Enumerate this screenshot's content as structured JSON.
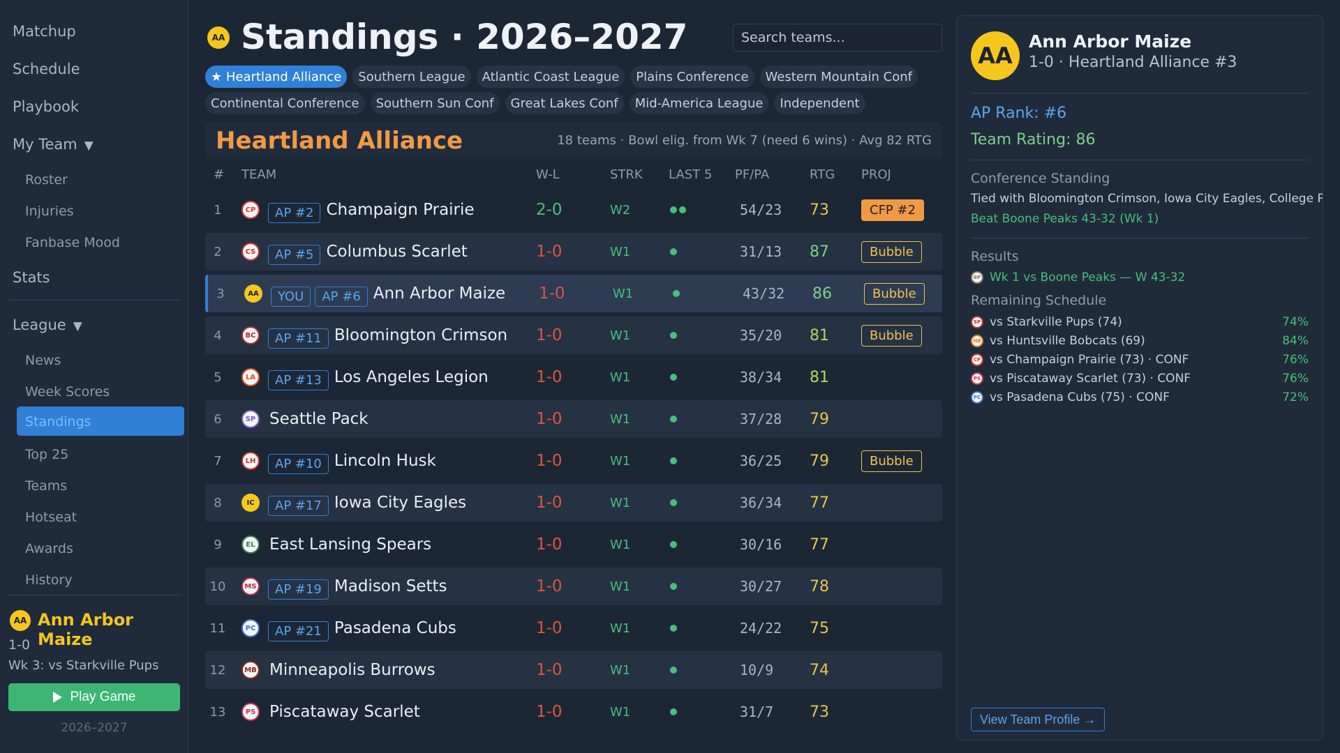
{
  "sidebar": {
    "nav": [
      "Matchup",
      "Schedule",
      "Playbook",
      "My Team"
    ],
    "my_team_sub": [
      "Roster",
      "Injuries",
      "Fanbase Mood"
    ],
    "stats": "Stats",
    "league": "League",
    "league_sub": [
      "News",
      "Week Scores",
      "Standings",
      "Top 25",
      "Teams",
      "Hotseat",
      "Awards",
      "History"
    ],
    "active_item": "Standings",
    "user_team": {
      "logo": "AA",
      "name": "Ann Arbor Maize",
      "record": "1-0",
      "next_game": "Wk 3: vs Starkville Pups"
    },
    "play_button": "Play Game",
    "season": "2026–2027"
  },
  "header": {
    "logo": "AA",
    "title": "Standings · 2026–2027",
    "search_placeholder": "Search teams..."
  },
  "conferences_row1": [
    "★ Heartland Alliance",
    "Southern League",
    "Atlantic Coast League",
    "Plains Conference",
    "Western Mountain Conf"
  ],
  "conferences_row2": [
    "Continental Conference",
    "Southern Sun Conf",
    "Great Lakes Conf",
    "Mid-America League",
    "Independent"
  ],
  "conference": {
    "name": "Heartland Alliance",
    "meta": "18 teams · Bowl elig. from Wk 7 (need 6 wins) · Avg 82 RTG"
  },
  "columns": [
    "#",
    "TEAM",
    "W-L",
    "STRK",
    "LAST 5",
    "PF/PA",
    "RTG",
    "PROJ"
  ],
  "standings": [
    {
      "rank": "1",
      "logo": "CP",
      "logo_color": "#d63b2f",
      "badges": [
        "AP #2"
      ],
      "team": "Champaign Prairie",
      "wl": "2-0",
      "wl_color": "#46c07a",
      "strk": "W2",
      "last5": 2,
      "pfpa": "54/23",
      "rtg": "73",
      "rtg_color": "#e8c44c",
      "proj": "CFP #2",
      "proj_type": "cfp"
    },
    {
      "rank": "2",
      "logo": "CS",
      "logo_color": "#c4312b",
      "badges": [
        "AP #5"
      ],
      "team": "Columbus Scarlet",
      "wl": "1-0",
      "wl_color": "#e0533f",
      "strk": "W1",
      "last5": 1,
      "pfpa": "31/13",
      "rtg": "87",
      "rtg_color": "#7cd08e",
      "proj": "Bubble",
      "proj_type": "bubble"
    },
    {
      "rank": "3",
      "logo": "AA",
      "logo_color": "#f5c61c",
      "badges": [
        "YOU",
        "AP #6"
      ],
      "team": "Ann Arbor Maize",
      "wl": "1-0",
      "wl_color": "#e0533f",
      "strk": "W1",
      "last5": 1,
      "pfpa": "43/32",
      "rtg": "86",
      "rtg_color": "#7cd08e",
      "proj": "Bubble",
      "proj_type": "bubble",
      "you": true
    },
    {
      "rank": "4",
      "logo": "BC",
      "logo_color": "#b32a2a",
      "badges": [
        "AP #11"
      ],
      "team": "Bloomington Crimson",
      "wl": "1-0",
      "wl_color": "#e0533f",
      "strk": "W1",
      "last5": 1,
      "pfpa": "35/20",
      "rtg": "81",
      "rtg_color": "#b8d35a",
      "proj": "Bubble",
      "proj_type": "bubble"
    },
    {
      "rank": "5",
      "logo": "LA",
      "logo_color": "#d9531e",
      "badges": [
        "AP #13"
      ],
      "team": "Los Angeles Legion",
      "wl": "1-0",
      "wl_color": "#e0533f",
      "strk": "W1",
      "last5": 1,
      "pfpa": "38/34",
      "rtg": "81",
      "rtg_color": "#b8d35a",
      "proj": "",
      "proj_type": ""
    },
    {
      "rank": "6",
      "logo": "SP",
      "logo_color": "#7b5cc4",
      "badges": [],
      "team": "Seattle Pack",
      "wl": "1-0",
      "wl_color": "#e0533f",
      "strk": "W1",
      "last5": 1,
      "pfpa": "37/28",
      "rtg": "79",
      "rtg_color": "#e8c44c",
      "proj": "",
      "proj_type": ""
    },
    {
      "rank": "7",
      "logo": "LH",
      "logo_color": "#c4312b",
      "badges": [
        "AP #10"
      ],
      "team": "Lincoln Husk",
      "wl": "1-0",
      "wl_color": "#e0533f",
      "strk": "W1",
      "last5": 1,
      "pfpa": "36/25",
      "rtg": "79",
      "rtg_color": "#e8c44c",
      "proj": "Bubble",
      "proj_type": "bubble"
    },
    {
      "rank": "8",
      "logo": "IC",
      "logo_color": "#f5c61c",
      "badges": [
        "AP #17"
      ],
      "team": "Iowa City Eagles",
      "wl": "1-0",
      "wl_color": "#e0533f",
      "strk": "W1",
      "last5": 1,
      "pfpa": "36/34",
      "rtg": "77",
      "rtg_color": "#e8c44c",
      "proj": "",
      "proj_type": ""
    },
    {
      "rank": "9",
      "logo": "EL",
      "logo_color": "#2e7d4f",
      "badges": [],
      "team": "East Lansing Spears",
      "wl": "1-0",
      "wl_color": "#e0533f",
      "strk": "W1",
      "last5": 1,
      "pfpa": "30/16",
      "rtg": "77",
      "rtg_color": "#e8c44c",
      "proj": "",
      "proj_type": ""
    },
    {
      "rank": "10",
      "logo": "MS",
      "logo_color": "#b3304a",
      "badges": [
        "AP #19"
      ],
      "team": "Madison Setts",
      "wl": "1-0",
      "wl_color": "#e0533f",
      "strk": "W1",
      "last5": 1,
      "pfpa": "30/27",
      "rtg": "78",
      "rtg_color": "#e8c44c",
      "proj": "",
      "proj_type": ""
    },
    {
      "rank": "11",
      "logo": "PC",
      "logo_color": "#3a76c9",
      "badges": [
        "AP #21"
      ],
      "team": "Pasadena Cubs",
      "wl": "1-0",
      "wl_color": "#e0533f",
      "strk": "W1",
      "last5": 1,
      "pfpa": "24/22",
      "rtg": "75",
      "rtg_color": "#e8c44c",
      "proj": "",
      "proj_type": ""
    },
    {
      "rank": "12",
      "logo": "MB",
      "logo_color": "#8a2a1e",
      "badges": [],
      "team": "Minneapolis Burrows",
      "wl": "1-0",
      "wl_color": "#e0533f",
      "strk": "W1",
      "last5": 1,
      "pfpa": "10/9",
      "rtg": "74",
      "rtg_color": "#e8c44c",
      "proj": "",
      "proj_type": ""
    },
    {
      "rank": "13",
      "logo": "PS",
      "logo_color": "#d0334e",
      "badges": [],
      "team": "Piscataway Scarlet",
      "wl": "1-0",
      "wl_color": "#e0533f",
      "strk": "W1",
      "last5": 1,
      "pfpa": "31/7",
      "rtg": "73",
      "rtg_color": "#e8c44c",
      "proj": "",
      "proj_type": ""
    }
  ],
  "detail": {
    "logo": "AA",
    "name": "Ann Arbor Maize",
    "record": "1-0 · Heartland Alliance #3",
    "ap_rank": "AP Rank: #6",
    "team_rating": "Team Rating: 86",
    "conf_standing_label": "Conference Standing",
    "tie_text": "Tied with Bloomington Crimson, Iowa City Eagles, College Park",
    "beat_text": "Beat Boone Peaks 43-32 (Wk 1)",
    "results_label": "Results",
    "result": {
      "logo": "BP",
      "logo_color": "#8a7a6a",
      "text": "Wk 1 vs Boone Peaks — W 43-32"
    },
    "remaining_label": "Remaining Schedule",
    "remaining": [
      {
        "logo": "SP",
        "logo_color": "#c4312b",
        "text": "vs Starkville Pups (74)",
        "pct": "74%"
      },
      {
        "logo": "HB",
        "logo_color": "#e07b20",
        "text": "vs Huntsville Bobcats (69)",
        "pct": "84%"
      },
      {
        "logo": "CP",
        "logo_color": "#d63b2f",
        "text": "vs Champaign Prairie (73) · CONF",
        "pct": "76%"
      },
      {
        "logo": "PS",
        "logo_color": "#d0334e",
        "text": "vs Piscataway Scarlet (73) · CONF",
        "pct": "76%"
      },
      {
        "logo": "PC",
        "logo_color": "#3a76c9",
        "text": "vs Pasadena Cubs (75) · CONF",
        "pct": "72%"
      }
    ],
    "view_profile": "View Team Profile →"
  }
}
